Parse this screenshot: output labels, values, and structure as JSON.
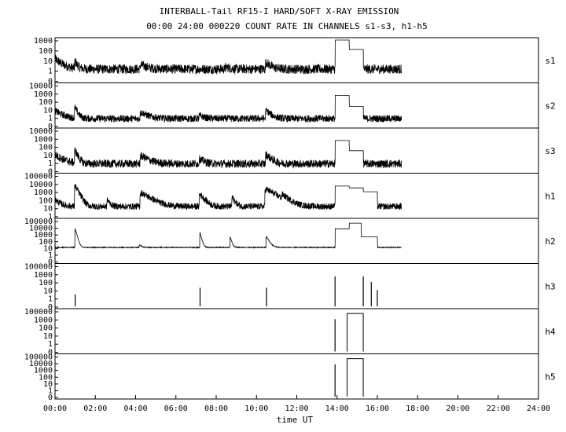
{
  "figure": {
    "title": "INTERBALL-Tail RF15-I HARD/SOFT X-RAY EMISSION",
    "subtitle": "00:00 24:00 000220  COUNT RATE IN CHANNELS s1-s3, h1-h5",
    "xlabel": "time UT"
  },
  "chart_data": {
    "type": "line",
    "x_ticks": [
      "00:00",
      "02:00",
      "04:00",
      "06:00",
      "08:00",
      "10:00",
      "12:00",
      "14:00",
      "16:00",
      "18:00",
      "20:00",
      "22:00",
      "24:00"
    ],
    "xlim": [
      0,
      24
    ],
    "y_scale": "log",
    "line_color": "#000000",
    "panels": [
      {
        "name": "s1",
        "yticks": [
          "1000",
          "100",
          "10",
          "1",
          "0"
        ],
        "ylim": [
          1,
          1000
        ],
        "series": [
          {
            "base": 7,
            "noise": 0.35,
            "data_end_hour": 17.2,
            "events": [
              {
                "t": 0.0,
                "peak": 40,
                "w": 0.3
              },
              {
                "t": 1.0,
                "peak": 25,
                "w": 0.1
              },
              {
                "t": 4.3,
                "peak": 14,
                "w": 0.3
              },
              {
                "t": 8.5,
                "peak": 10,
                "w": 0.2
              },
              {
                "t": 10.5,
                "peak": 22,
                "w": 0.2
              }
            ],
            "plateaus": [
              {
                "t0": 13.9,
                "t1": 14.6,
                "value": 1000
              },
              {
                "t0": 14.6,
                "t1": 15.3,
                "value": 200
              }
            ]
          }
        ]
      },
      {
        "name": "s2",
        "yticks": [
          "10000",
          "1000",
          "100",
          "10",
          "1",
          "0"
        ],
        "ylim": [
          1,
          10000
        ],
        "series": [
          {
            "base": 5,
            "noise": 0.35,
            "data_end_hour": 17.2,
            "events": [
              {
                "t": 0.0,
                "peak": 30,
                "w": 0.3
              },
              {
                "t": 1.0,
                "peak": 60,
                "w": 0.1
              },
              {
                "t": 4.3,
                "peak": 20,
                "w": 0.3
              },
              {
                "t": 7.2,
                "peak": 10,
                "w": 0.2
              },
              {
                "t": 10.5,
                "peak": 30,
                "w": 0.2
              }
            ],
            "plateaus": [
              {
                "t0": 13.9,
                "t1": 14.6,
                "value": 1000
              },
              {
                "t0": 14.6,
                "t1": 15.3,
                "value": 80
              }
            ]
          }
        ]
      },
      {
        "name": "s3",
        "yticks": [
          "10000",
          "1000",
          "100",
          "10",
          "1",
          "0"
        ],
        "ylim": [
          1,
          10000
        ],
        "series": [
          {
            "base": 5,
            "noise": 0.4,
            "data_end_hour": 17.2,
            "events": [
              {
                "t": 0.0,
                "peak": 40,
                "w": 0.3
              },
              {
                "t": 1.0,
                "peak": 100,
                "w": 0.1
              },
              {
                "t": 4.3,
                "peak": 30,
                "w": 0.3
              },
              {
                "t": 7.2,
                "peak": 15,
                "w": 0.2
              },
              {
                "t": 10.5,
                "peak": 40,
                "w": 0.2
              }
            ],
            "plateaus": [
              {
                "t0": 13.9,
                "t1": 14.6,
                "value": 1000
              },
              {
                "t0": 14.6,
                "t1": 15.3,
                "value": 100
              }
            ]
          }
        ]
      },
      {
        "name": "h1",
        "yticks": [
          "100000",
          "10000",
          "1000",
          "100",
          "10",
          "1"
        ],
        "ylim": [
          1,
          100000
        ],
        "series": [
          {
            "base": 15,
            "noise": 0.4,
            "data_end_hour": 17.2,
            "events": [
              {
                "t": 0.0,
                "peak": 100,
                "w": 0.2
              },
              {
                "t": 1.0,
                "peak": 5000,
                "w": 0.1
              },
              {
                "t": 2.6,
                "peak": 100,
                "w": 0.1
              },
              {
                "t": 4.3,
                "peak": 700,
                "w": 0.3
              },
              {
                "t": 7.2,
                "peak": 500,
                "w": 0.15
              },
              {
                "t": 8.8,
                "peak": 200,
                "w": 0.1
              },
              {
                "t": 10.5,
                "peak": 2000,
                "w": 0.3
              },
              {
                "t": 11.3,
                "peak": 300,
                "w": 0.2
              }
            ],
            "plateaus": [
              {
                "t0": 13.9,
                "t1": 14.6,
                "value": 5000
              },
              {
                "t0": 14.6,
                "t1": 15.3,
                "value": 3000
              },
              {
                "t0": 15.3,
                "t1": 16.0,
                "value": 1000
              }
            ]
          }
        ]
      },
      {
        "name": "h2",
        "yticks": [
          "100000",
          "10000",
          "1000",
          "100",
          "10",
          "1",
          "0"
        ],
        "ylim": [
          1,
          100000
        ],
        "series": [
          {
            "base": 50,
            "noise": 0.05,
            "data_end_hour": 17.2,
            "events": [
              {
                "t": 1.0,
                "peak": 10000,
                "w": 0.05
              },
              {
                "t": 4.2,
                "peak": 100,
                "w": 0.1
              },
              {
                "t": 7.2,
                "peak": 3000,
                "w": 0.05
              },
              {
                "t": 8.7,
                "peak": 1000,
                "w": 0.05
              },
              {
                "t": 10.5,
                "peak": 1000,
                "w": 0.1
              }
            ],
            "plateaus": [
              {
                "t0": 13.9,
                "t1": 14.6,
                "value": 10000
              },
              {
                "t0": 14.6,
                "t1": 15.2,
                "value": 50000
              },
              {
                "t0": 15.2,
                "t1": 16.0,
                "value": 1000
              }
            ]
          }
        ]
      },
      {
        "name": "h3",
        "yticks": [
          "100000",
          "1000",
          "100",
          "10",
          "1",
          "0"
        ],
        "ylim": [
          1,
          100000
        ],
        "series": [
          {
            "base": 0,
            "noise": 0,
            "data_end_hour": 16.1,
            "events": [],
            "spikes": [
              {
                "t": 1.0,
                "value": 30
              },
              {
                "t": 7.2,
                "value": 200
              },
              {
                "t": 10.5,
                "value": 200
              },
              {
                "t": 13.9,
                "value": 5000
              },
              {
                "t": 15.3,
                "value": 5000
              },
              {
                "t": 15.7,
                "value": 1000
              },
              {
                "t": 16.0,
                "value": 100
              }
            ],
            "plateaus": []
          }
        ]
      },
      {
        "name": "h4",
        "yticks": [
          "100000",
          "1000",
          "100",
          "10",
          "1",
          "0"
        ],
        "ylim": [
          1,
          100000
        ],
        "series": [
          {
            "base": 0,
            "noise": 0,
            "data_end_hour": 15.5,
            "events": [],
            "spikes": [
              {
                "t": 13.9,
                "value": 10000
              }
            ],
            "plateaus": [
              {
                "t0": 14.5,
                "t1": 15.3,
                "value": 50000
              }
            ]
          }
        ]
      },
      {
        "name": "h5",
        "yticks": [
          "100000",
          "10000",
          "1000",
          "100",
          "10",
          "1",
          "0"
        ],
        "ylim": [
          1,
          100000
        ],
        "series": [
          {
            "base": 0,
            "noise": 0,
            "data_end_hour": 15.5,
            "events": [],
            "spikes": [
              {
                "t": 13.9,
                "value": 10000
              }
            ],
            "plateaus": [
              {
                "t0": 14.5,
                "t1": 15.3,
                "value": 50000
              }
            ]
          }
        ]
      }
    ]
  }
}
